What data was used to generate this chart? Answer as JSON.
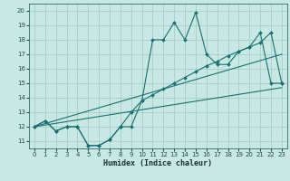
{
  "bg_color": "#c8e8e4",
  "grid_color": "#a0c8c4",
  "line_color": "#1a7070",
  "xlabel": "Humidex (Indice chaleur)",
  "xlim": [
    -0.5,
    23.5
  ],
  "ylim": [
    10.5,
    20.5
  ],
  "xticks": [
    0,
    1,
    2,
    3,
    4,
    5,
    6,
    7,
    8,
    9,
    10,
    11,
    12,
    13,
    14,
    15,
    16,
    17,
    18,
    19,
    20,
    21,
    22,
    23
  ],
  "yticks": [
    11,
    12,
    13,
    14,
    15,
    16,
    17,
    18,
    19,
    20
  ],
  "curve_main_x": [
    0,
    1,
    2,
    3,
    4,
    5,
    6,
    7,
    8,
    9,
    10,
    11,
    12,
    13,
    14,
    15,
    16,
    17,
    18,
    19,
    20,
    21,
    22,
    23
  ],
  "curve_main_y": [
    12.0,
    12.4,
    11.7,
    12.0,
    12.0,
    10.7,
    10.7,
    11.1,
    12.0,
    12.0,
    13.8,
    18.0,
    18.0,
    19.2,
    18.0,
    19.9,
    17.0,
    16.3,
    16.3,
    17.2,
    17.5,
    18.5,
    15.0,
    15.0
  ],
  "curve_low_x": [
    0,
    1,
    2,
    3,
    4,
    5,
    6,
    7,
    8,
    9,
    10,
    11,
    12,
    13,
    14,
    15,
    16,
    17,
    18,
    19,
    20,
    21,
    22,
    23
  ],
  "curve_low_y": [
    12.0,
    12.4,
    11.7,
    12.0,
    12.0,
    10.7,
    10.7,
    11.1,
    12.0,
    13.0,
    13.8,
    14.2,
    14.6,
    15.0,
    15.4,
    15.8,
    16.2,
    16.5,
    16.9,
    17.2,
    17.5,
    17.8,
    18.5,
    15.0
  ],
  "trend1_x": [
    0,
    23
  ],
  "trend1_y": [
    12.0,
    17.0
  ],
  "trend2_x": [
    0,
    23
  ],
  "trend2_y": [
    12.0,
    14.7
  ]
}
